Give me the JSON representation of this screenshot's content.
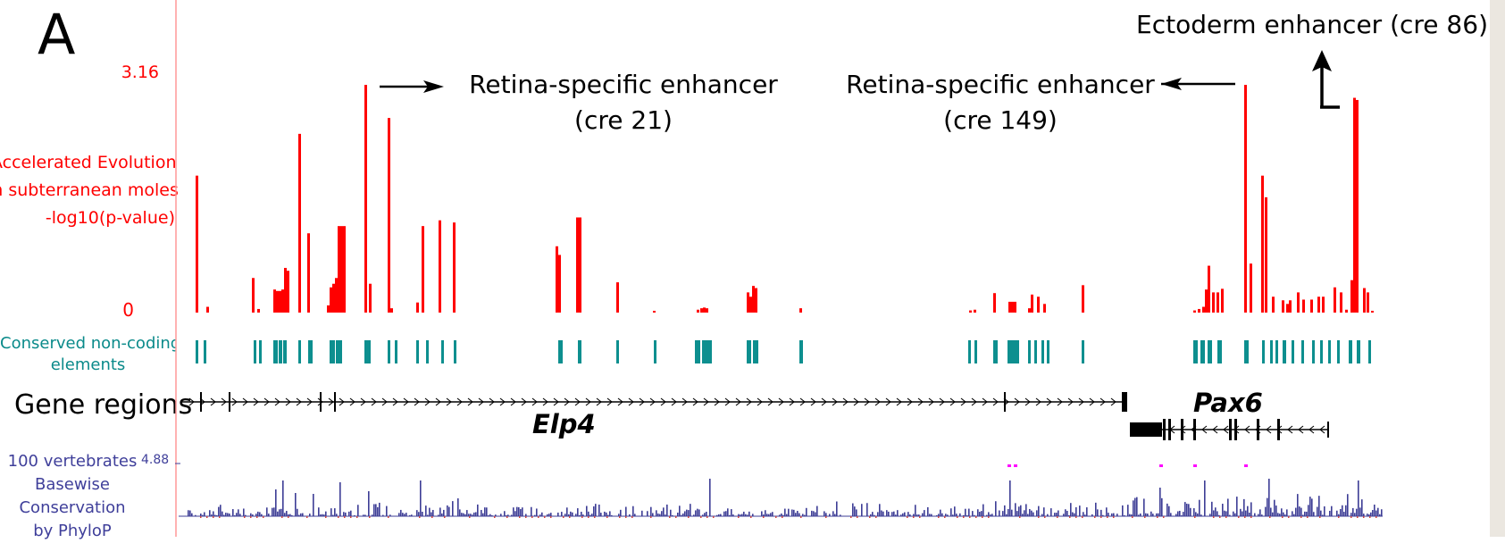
{
  "panel": {
    "letter": "A"
  },
  "tracks": {
    "acceleration": {
      "label_lines": [
        "Accelerated Evolution",
        "in subterranean moles",
        "-log10(p-value)"
      ],
      "max_label": "3.16",
      "min_label": "0",
      "color": "#ff0000",
      "ymax": 3.16,
      "bars": [
        [
          219,
          1.9
        ],
        [
          231,
          0.08
        ],
        [
          282,
          0.48
        ],
        [
          288,
          0.05
        ],
        [
          306,
          0.32
        ],
        [
          309,
          0.3
        ],
        [
          312,
          0.3
        ],
        [
          315,
          0.32
        ],
        [
          318,
          0.62
        ],
        [
          321,
          0.58
        ],
        [
          334,
          2.48
        ],
        [
          344,
          1.1
        ],
        [
          366,
          0.1
        ],
        [
          369,
          0.35
        ],
        [
          372,
          0.4
        ],
        [
          375,
          0.48
        ],
        [
          378,
          1.2
        ],
        [
          381,
          1.2
        ],
        [
          384,
          1.2
        ],
        [
          408,
          3.16
        ],
        [
          413,
          0.4
        ],
        [
          434,
          2.7
        ],
        [
          437,
          0.06
        ],
        [
          466,
          0.14
        ],
        [
          472,
          1.2
        ],
        [
          491,
          1.28
        ],
        [
          507,
          1.25
        ],
        [
          622,
          0.92
        ],
        [
          625,
          0.8
        ],
        [
          645,
          1.32
        ],
        [
          648,
          1.32
        ],
        [
          690,
          0.42
        ],
        [
          731,
          0.02
        ],
        [
          780,
          0.04
        ],
        [
          784,
          0.06
        ],
        [
          787,
          0.07
        ],
        [
          790,
          0.06
        ],
        [
          836,
          0.28
        ],
        [
          839,
          0.22
        ],
        [
          842,
          0.37
        ],
        [
          845,
          0.34
        ],
        [
          895,
          0.06
        ],
        [
          1085,
          0.03
        ],
        [
          1090,
          0.04
        ],
        [
          1112,
          0.27
        ],
        [
          1129,
          0.15
        ],
        [
          1132,
          0.15
        ],
        [
          1135,
          0.15
        ],
        [
          1151,
          0.06
        ],
        [
          1154,
          0.25
        ],
        [
          1161,
          0.22
        ],
        [
          1168,
          0.12
        ],
        [
          1211,
          0.38
        ],
        [
          1336,
          0.03
        ],
        [
          1341,
          0.05
        ],
        [
          1346,
          0.08
        ],
        [
          1349,
          0.32
        ],
        [
          1352,
          0.65
        ],
        [
          1357,
          0.28
        ],
        [
          1362,
          0.28
        ],
        [
          1367,
          0.33
        ],
        [
          1393,
          3.16
        ],
        [
          1399,
          0.68
        ],
        [
          1412,
          1.9
        ],
        [
          1416,
          1.6
        ],
        [
          1424,
          0.22
        ],
        [
          1435,
          0.17
        ],
        [
          1440,
          0.12
        ],
        [
          1443,
          0.17
        ],
        [
          1452,
          0.28
        ],
        [
          1458,
          0.18
        ],
        [
          1467,
          0.18
        ],
        [
          1475,
          0.22
        ],
        [
          1480,
          0.22
        ],
        [
          1493,
          0.35
        ],
        [
          1500,
          0.28
        ],
        [
          1506,
          0.04
        ],
        [
          1512,
          0.45
        ],
        [
          1515,
          2.98
        ],
        [
          1518,
          2.95
        ],
        [
          1526,
          0.34
        ],
        [
          1530,
          0.28
        ],
        [
          1535,
          0.02
        ]
      ]
    },
    "cne": {
      "label_lines": [
        "Conserved non-coding",
        "elements"
      ],
      "color": "#0d8f8f",
      "marks": [
        [
          219,
          3
        ],
        [
          228,
          3
        ],
        [
          284,
          3
        ],
        [
          290,
          3
        ],
        [
          306,
          5
        ],
        [
          312,
          4
        ],
        [
          317,
          4
        ],
        [
          334,
          3
        ],
        [
          345,
          5
        ],
        [
          369,
          6
        ],
        [
          376,
          7
        ],
        [
          408,
          7
        ],
        [
          434,
          3
        ],
        [
          442,
          3
        ],
        [
          466,
          3
        ],
        [
          477,
          3
        ],
        [
          494,
          3
        ],
        [
          508,
          3
        ],
        [
          625,
          5
        ],
        [
          647,
          4
        ],
        [
          690,
          3
        ],
        [
          732,
          3
        ],
        [
          778,
          6
        ],
        [
          786,
          7
        ],
        [
          792,
          5
        ],
        [
          836,
          5
        ],
        [
          843,
          6
        ],
        [
          895,
          4
        ],
        [
          1084,
          3
        ],
        [
          1091,
          3
        ],
        [
          1112,
          5
        ],
        [
          1128,
          6
        ],
        [
          1134,
          7
        ],
        [
          1151,
          3
        ],
        [
          1158,
          3
        ],
        [
          1166,
          3
        ],
        [
          1172,
          3
        ],
        [
          1211,
          3
        ],
        [
          1336,
          5
        ],
        [
          1344,
          5
        ],
        [
          1352,
          5
        ],
        [
          1363,
          5
        ],
        [
          1393,
          5
        ],
        [
          1413,
          3
        ],
        [
          1422,
          3
        ],
        [
          1428,
          3
        ],
        [
          1436,
          4
        ],
        [
          1446,
          3
        ],
        [
          1457,
          3
        ],
        [
          1469,
          3
        ],
        [
          1478,
          3
        ],
        [
          1487,
          3
        ],
        [
          1497,
          3
        ],
        [
          1510,
          4
        ],
        [
          1519,
          4
        ],
        [
          1532,
          3
        ]
      ]
    },
    "genes": {
      "label": "Gene regions",
      "items": [
        {
          "name": "Elp4",
          "strand": "+",
          "start": 204,
          "end": 1260,
          "exons": [
            224,
            256,
            358,
            374,
            1124,
            1258
          ]
        },
        {
          "name": "Pax6",
          "strand": "-",
          "start": 1265,
          "end": 1487,
          "exons": [
            1302,
            1308,
            1322,
            1336,
            1376,
            1382,
            1407,
            1430
          ]
        }
      ]
    },
    "conservation": {
      "label_lines": [
        "100 vertebrates",
        "Basewise",
        "Conservation",
        "by PhyloP"
      ],
      "max_label": "4.88",
      "color": "#3d3d95",
      "ymax": 4.88,
      "peak_color": "#ff00ff"
    }
  },
  "annotations": [
    {
      "id": "cre21",
      "lines": [
        "Retina-specific enhancer",
        "(cre 21)"
      ],
      "direction": "left"
    },
    {
      "id": "cre149",
      "lines": [
        "Retina-specific enhancer",
        "(cre 149)"
      ],
      "direction": "right"
    },
    {
      "id": "cre86",
      "lines": [
        "Ectoderm enhancer (cre 86)"
      ],
      "direction": "up"
    }
  ]
}
